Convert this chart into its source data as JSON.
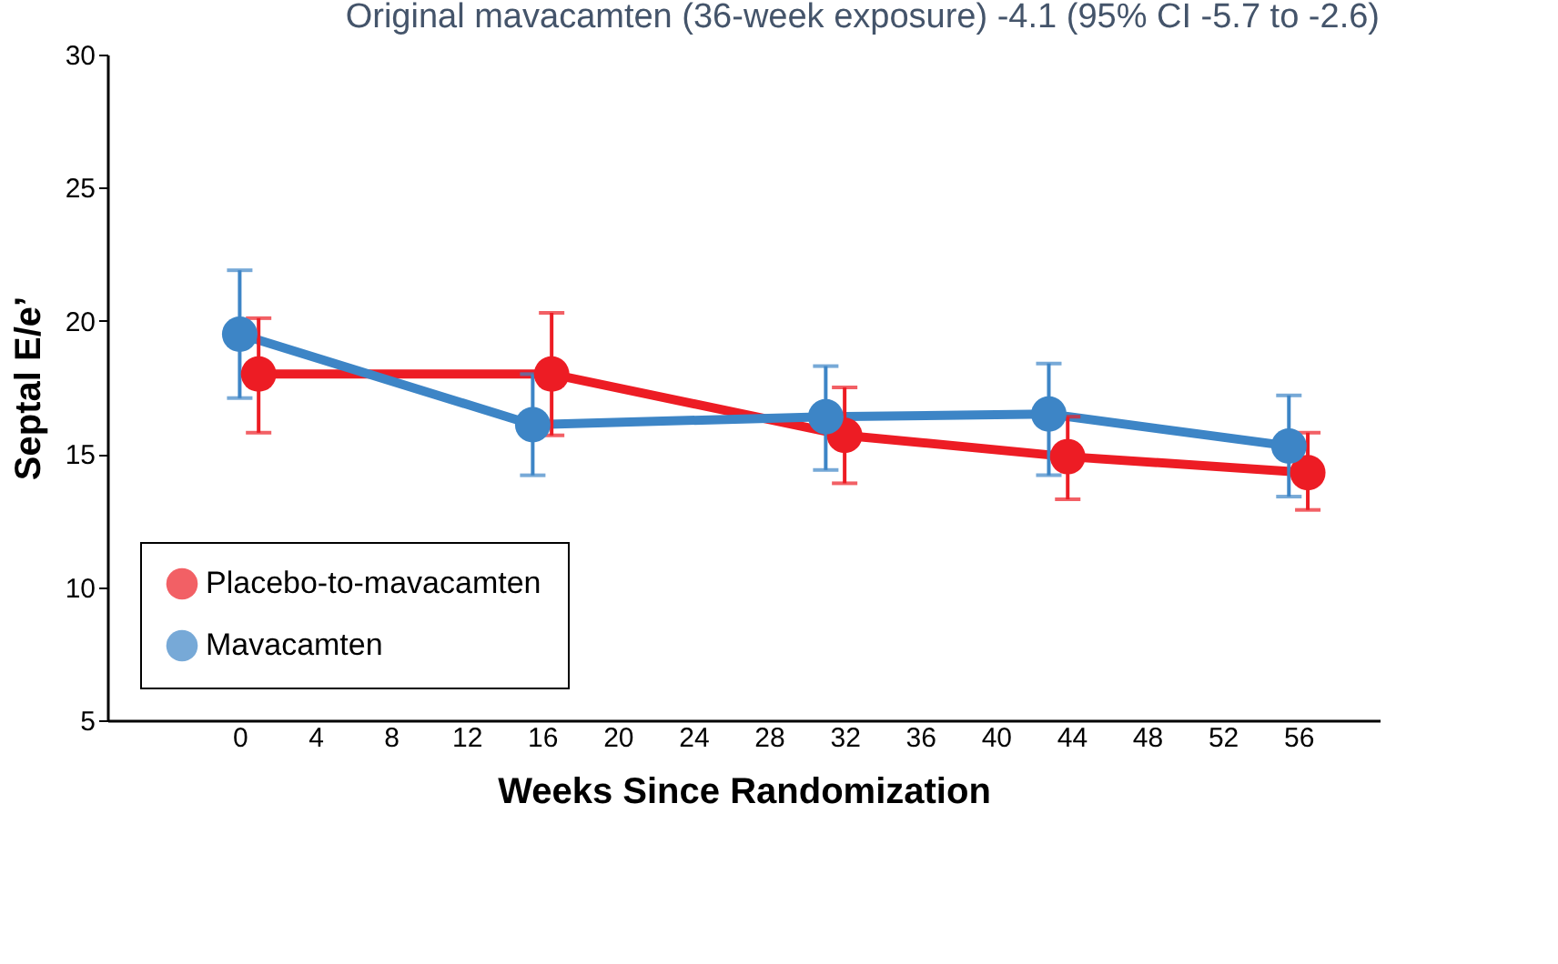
{
  "chart_data": {
    "type": "line",
    "title": "Original mavacamten (36-week exposure) -4.1 (95% CI -5.7 to -2.6)",
    "xlabel": "Weeks Since Randomization",
    "ylabel": "Septal E/e’",
    "xlim": [
      -7,
      60.3
    ],
    "xticks": [
      0,
      4,
      8,
      12,
      16,
      20,
      24,
      28,
      32,
      36,
      40,
      44,
      48,
      52,
      56
    ],
    "ylim": [
      5,
      30
    ],
    "yticks": [
      5,
      10,
      15,
      20,
      25,
      30
    ],
    "grid": false,
    "legend": "bottom left",
    "marker": "circle",
    "line_style": "solid",
    "series": [
      {
        "name": "Placebo-to-mavacamten",
        "color": "#ed1c24",
        "x": [
          1,
          16.5,
          32,
          43.8,
          56.5
        ],
        "values": [
          18.0,
          18.0,
          15.7,
          14.9,
          14.3
        ],
        "errors": [
          [
            15.8,
            20.1
          ],
          [
            15.7,
            20.3
          ],
          [
            13.9,
            17.5
          ],
          [
            13.3,
            16.4
          ],
          [
            12.9,
            15.8
          ]
        ]
      },
      {
        "name": "Mavacamten",
        "color": "#3d85c6",
        "x": [
          0,
          15.5,
          31,
          42.8,
          55.5
        ],
        "values": [
          19.5,
          16.1,
          16.4,
          16.5,
          15.3
        ],
        "errors": [
          [
            17.1,
            21.9
          ],
          [
            14.2,
            18.0
          ],
          [
            14.4,
            18.3
          ],
          [
            14.2,
            18.4
          ],
          [
            13.4,
            17.2
          ]
        ]
      }
    ]
  }
}
